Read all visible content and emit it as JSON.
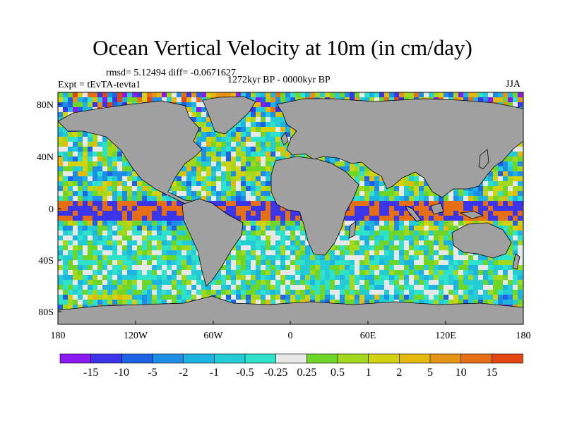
{
  "title": "Ocean Vertical Velocity at 10m (in cm/day)",
  "stats": "rmsd= 5.12494 diff= -0.0671627",
  "period": "1272kyr BP - 0000kyr BP",
  "experiment": "Expt = tEvTA-tevta1",
  "season": "JJA",
  "map": {
    "land_color": "#a0a0a0",
    "coastline_color": "#000000",
    "lat_ticks": [
      "80N",
      "40N",
      "0",
      "40S",
      "80S"
    ],
    "lon_ticks": [
      "180",
      "120W",
      "60W",
      "0",
      "60E",
      "120E",
      "180"
    ]
  },
  "colorbar": {
    "colors": [
      "#8a19f2",
      "#3b35ea",
      "#1e62e6",
      "#1d8ee8",
      "#1db4e2",
      "#24cdd6",
      "#2ee3c9",
      "#e8e8e8",
      "#6ed626",
      "#a4d81c",
      "#d2d20e",
      "#e4b90c",
      "#e69416",
      "#e66e14",
      "#e44610"
    ],
    "labels": [
      "-15",
      "-10",
      "-5",
      "-2",
      "-1",
      "-0.5",
      "-0.25",
      "0.25",
      "0.5",
      "1",
      "2",
      "5",
      "10",
      "15"
    ]
  }
}
